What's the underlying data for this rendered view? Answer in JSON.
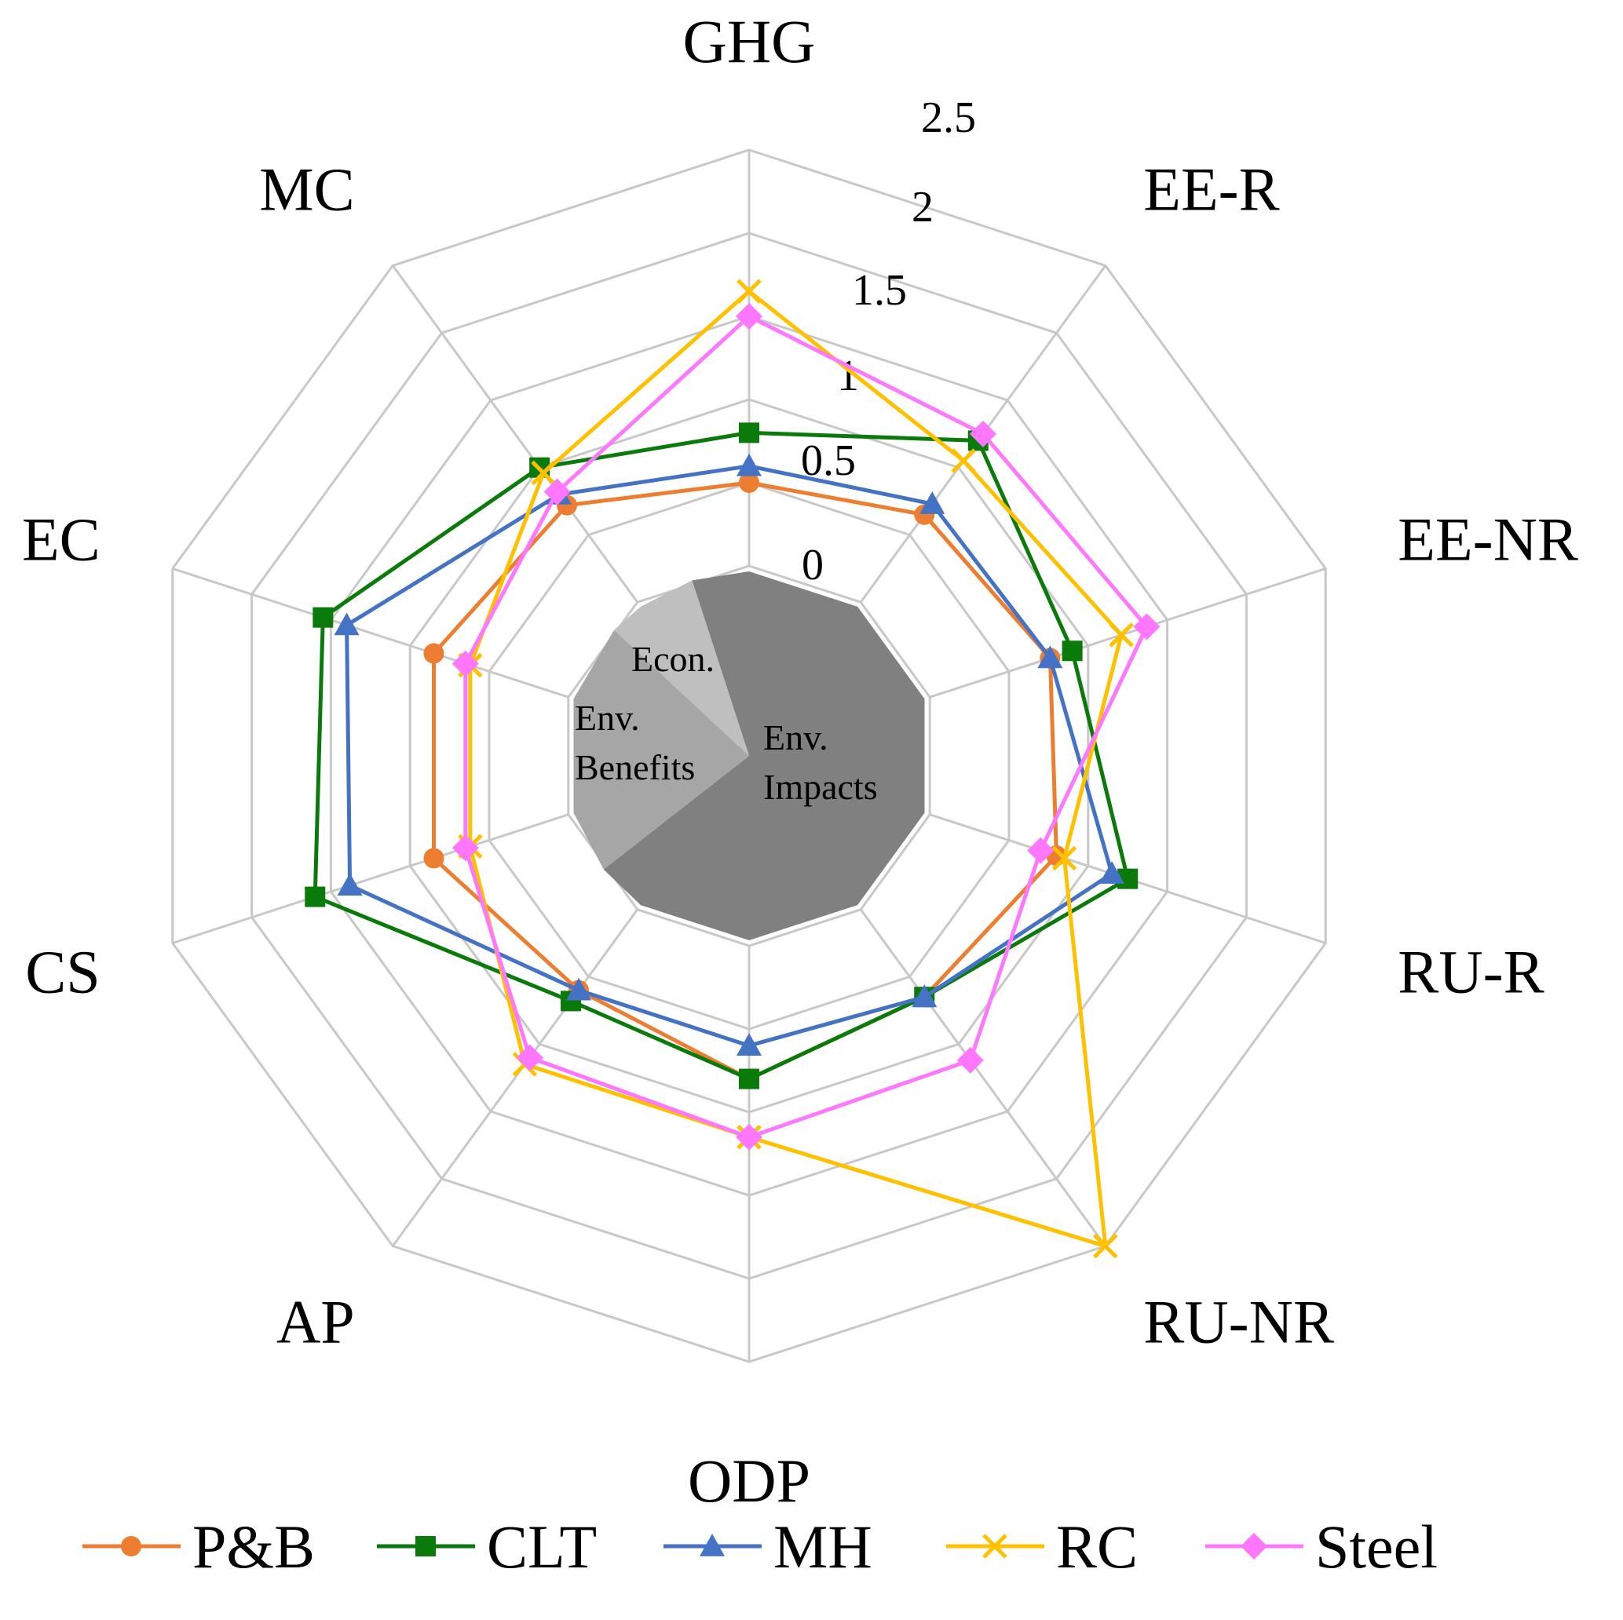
{
  "chart_data": {
    "type": "radar",
    "axes": [
      "GHG",
      "EE-R",
      "EE-NR",
      "RU-R",
      "RU-NR",
      "ODP",
      "AP",
      "CS",
      "EC",
      "MC"
    ],
    "ticks": [
      "0",
      "0.5",
      "1",
      "1.5",
      "2",
      "2.5"
    ],
    "tick_values": [
      0,
      0.5,
      1,
      1.5,
      2,
      2.5
    ],
    "range": [
      0,
      2.5
    ],
    "grid": true,
    "legend_position": "bottom",
    "center_regions": [
      {
        "label": [
          "Econ."
        ],
        "color": "#bfbfbf"
      },
      {
        "label": [
          "Env.",
          "Benefits"
        ],
        "color": "#a6a6a6"
      },
      {
        "label": [
          "Env.",
          "Impacts"
        ],
        "color": "#808080"
      }
    ],
    "series": [
      {
        "name": "P&B",
        "color": "#ed7d31",
        "marker": "circle",
        "values": [
          0.5,
          0.65,
          0.76,
          0.8,
          0.65,
          0.8,
          0.6,
          0.85,
          0.85,
          0.72
        ]
      },
      {
        "name": "CLT",
        "color": "#0a7a0a",
        "marker": "square",
        "values": [
          0.8,
          1.2,
          0.9,
          1.25,
          0.65,
          0.8,
          0.68,
          1.6,
          1.55,
          1.0
        ]
      },
      {
        "name": "MH",
        "color": "#4472c4",
        "marker": "triangle",
        "values": [
          0.6,
          0.73,
          0.76,
          1.15,
          0.65,
          0.6,
          0.6,
          1.38,
          1.4,
          0.8
        ]
      },
      {
        "name": "RC",
        "color": "#ffc000",
        "marker": "x",
        "values": [
          1.65,
          1.05,
          1.21,
          0.85,
          2.5,
          1.15,
          1.15,
          0.62,
          0.62,
          0.96
        ]
      },
      {
        "name": "Steel",
        "color": "#ff77ff",
        "marker": "diamond",
        "values": [
          1.5,
          1.25,
          1.37,
          0.7,
          1.12,
          1.15,
          1.1,
          0.65,
          0.65,
          0.82
        ]
      }
    ]
  }
}
